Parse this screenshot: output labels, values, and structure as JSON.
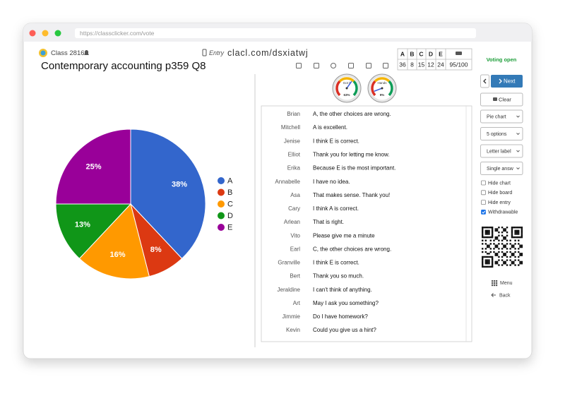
{
  "browser": {
    "url": "https://classclicker.com/vote"
  },
  "header": {
    "class_name": "Class 2816",
    "entry_label": "Entry",
    "entry_url": "clacl.com/dsxiatwj",
    "question": "Contemporary accounting p359 Q8"
  },
  "chart_data": {
    "type": "pie",
    "categories": [
      "A",
      "B",
      "C",
      "D",
      "E"
    ],
    "values": [
      38,
      8,
      16,
      13,
      25
    ],
    "value_labels": [
      "38%",
      "8%",
      "16%",
      "13%",
      "25%"
    ],
    "colors": [
      "#3366cc",
      "#dc3912",
      "#ff9900",
      "#109618",
      "#990099"
    ]
  },
  "tally": {
    "headers": [
      "A",
      "B",
      "C",
      "D",
      "E"
    ],
    "counts": [
      36,
      8,
      15,
      12,
      24
    ],
    "total": "95/100"
  },
  "gauges": [
    {
      "label": "Got it",
      "value": 63,
      "value_label": "63%"
    },
    {
      "label": "Hands",
      "value": 9,
      "value_label": "9%"
    }
  ],
  "responses": [
    {
      "name": "Brian",
      "text": "A, the other choices are wrong."
    },
    {
      "name": "Mitchell",
      "text": "A is excellent."
    },
    {
      "name": "Jenise",
      "text": "I think E is correct."
    },
    {
      "name": "Elliot",
      "text": "Thank you for letting me know."
    },
    {
      "name": "Erika",
      "text": "Because E is the most important."
    },
    {
      "name": "Annabelle",
      "text": "I have no idea."
    },
    {
      "name": "Asa",
      "text": "That makes sense. Thank you!"
    },
    {
      "name": "Cary",
      "text": "I think A is correct."
    },
    {
      "name": "Arlean",
      "text": "That is right."
    },
    {
      "name": "Vito",
      "text": "Please give me a minute"
    },
    {
      "name": "Earl",
      "text": "C, the other choices are wrong."
    },
    {
      "name": "Granville",
      "text": "I think E is correct."
    },
    {
      "name": "Bert",
      "text": "Thank you so much."
    },
    {
      "name": "Jeraldine",
      "text": "I can't think of anything."
    },
    {
      "name": "Art",
      "text": "May I ask you something?"
    },
    {
      "name": "Jimmie",
      "text": "Do I have homework?"
    },
    {
      "name": "Kevin",
      "text": "Could you give us a hint?"
    }
  ],
  "sidebar": {
    "status": "Voting open",
    "next": "Next",
    "clear": "Clear",
    "selects": [
      "Pie chart",
      "5 options",
      "Letter label",
      "Single answ"
    ],
    "checkboxes": [
      {
        "label": "Hide chart",
        "checked": false
      },
      {
        "label": "Hide board",
        "checked": false
      },
      {
        "label": "Hide entry",
        "checked": false
      },
      {
        "label": "Withdrawable",
        "checked": true
      }
    ],
    "menu": "Menu",
    "back": "Back"
  }
}
